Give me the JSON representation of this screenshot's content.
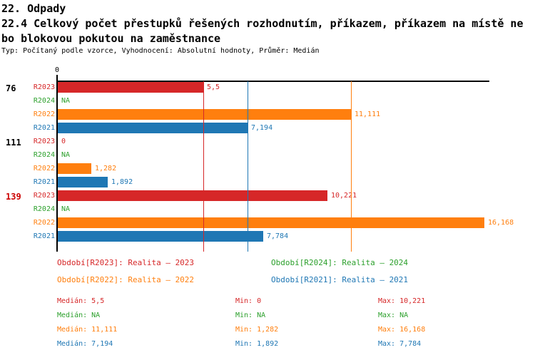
{
  "header": {
    "title_line1": "22. Odpady",
    "title_line2": "22.4 Celkový počet přestupků řešených rozhodnutím, příkazem, příkazem na místě ne",
    "title_line3": "bo blokovou pokutou na zaměstnance",
    "subtitle": "Typ: Počítaný podle vzorce, Vyhodnocení: Absolutní hodnoty, Průměr: Medián"
  },
  "colors": {
    "R2023": "#d62728",
    "R2024": "#2ca02c",
    "R2022": "#ff7f0e",
    "R2021": "#1f77b4",
    "axis": "#000000",
    "group_normal": "#000000",
    "group_highlight": "#cc0000"
  },
  "chart_data": {
    "type": "bar",
    "orientation": "horizontal",
    "x_axis": {
      "zero_label": "0",
      "xlim": [
        0,
        16.35
      ],
      "grid": false
    },
    "series_order": [
      "R2023",
      "R2024",
      "R2022",
      "R2021"
    ],
    "groups": [
      {
        "label": "76",
        "highlighted": false,
        "bars": [
          {
            "series": "R2023",
            "value": 5.5,
            "display": "5,5"
          },
          {
            "series": "R2024",
            "value": null,
            "display": "NA"
          },
          {
            "series": "R2022",
            "value": 11.111,
            "display": "11,111"
          },
          {
            "series": "R2021",
            "value": 7.194,
            "display": "7,194"
          }
        ]
      },
      {
        "label": "111",
        "highlighted": false,
        "bars": [
          {
            "series": "R2023",
            "value": 0,
            "display": "0"
          },
          {
            "series": "R2024",
            "value": null,
            "display": "NA"
          },
          {
            "series": "R2022",
            "value": 1.282,
            "display": "1,282"
          },
          {
            "series": "R2021",
            "value": 1.892,
            "display": "1,892"
          }
        ]
      },
      {
        "label": "139",
        "highlighted": true,
        "bars": [
          {
            "series": "R2023",
            "value": 10.221,
            "display": "10,221"
          },
          {
            "series": "R2024",
            "value": null,
            "display": "NA"
          },
          {
            "series": "R2022",
            "value": 16.168,
            "display": "16,168"
          },
          {
            "series": "R2021",
            "value": 7.784,
            "display": "7,784"
          }
        ]
      }
    ],
    "median_lines": [
      {
        "series": "R2023",
        "value": 5.5
      },
      {
        "series": "R2021",
        "value": 7.194
      },
      {
        "series": "R2022",
        "value": 11.111
      }
    ]
  },
  "legend": {
    "items": [
      {
        "series": "R2023",
        "text": "Období[R2023]: Realita – 2023"
      },
      {
        "series": "R2024",
        "text": "Období[R2024]: Realita – 2024"
      },
      {
        "series": "R2022",
        "text": "Období[R2022]: Realita – 2022"
      },
      {
        "series": "R2021",
        "text": "Období[R2021]: Realita – 2021"
      }
    ]
  },
  "stats": {
    "labels": {
      "median": "Medián",
      "min": "Min",
      "max": "Max"
    },
    "rows": [
      {
        "series": "R2023",
        "median": "5,5",
        "min": "0",
        "max": "10,221"
      },
      {
        "series": "R2024",
        "median": "NA",
        "min": "NA",
        "max": "NA"
      },
      {
        "series": "R2022",
        "median": "11,111",
        "min": "1,282",
        "max": "16,168"
      },
      {
        "series": "R2021",
        "median": "7,194",
        "min": "1,892",
        "max": "7,784"
      }
    ]
  }
}
